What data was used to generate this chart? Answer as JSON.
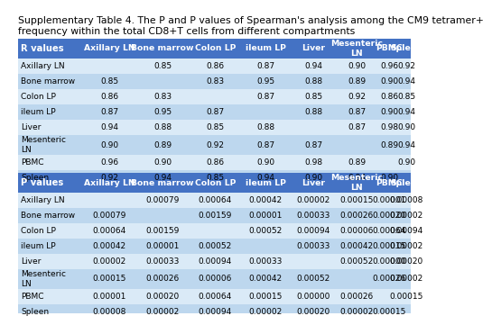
{
  "title_line1": "Supplementary Table 4. The P and P values of Spearman's analysis among the CM9 tetramer+",
  "title_line2": "frequency within the total CD8+T cells from different compartments",
  "r_header": "R values",
  "p_header": "P values",
  "columns": [
    "Axillary LN",
    "Bone marrow",
    "Colon LP",
    "ileum LP",
    "Liver",
    "Mesenteric\nLN",
    "PBMC",
    "Spleen"
  ],
  "rows": [
    "Axillary LN",
    "Bone marrow",
    "Colon LP",
    "ileum LP",
    "Liver",
    "Mesenteric\nLN",
    "PBMC",
    "Spleen"
  ],
  "r_data": [
    [
      "",
      "0.85",
      "0.86",
      "0.87",
      "0.94",
      "0.90",
      "0.96",
      "0.92"
    ],
    [
      "0.85",
      "",
      "0.83",
      "0.95",
      "0.88",
      "0.89",
      "0.90",
      "0.94"
    ],
    [
      "0.86",
      "0.83",
      "",
      "0.87",
      "0.85",
      "0.92",
      "0.86",
      "0.85"
    ],
    [
      "0.87",
      "0.95",
      "0.87",
      "",
      "0.88",
      "0.87",
      "0.90",
      "0.94"
    ],
    [
      "0.94",
      "0.88",
      "0.85",
      "0.88",
      "",
      "0.87",
      "0.98",
      "0.90"
    ],
    [
      "0.90",
      "0.89",
      "0.92",
      "0.87",
      "0.87",
      "",
      "0.89",
      "0.94"
    ],
    [
      "0.96",
      "0.90",
      "0.86",
      "0.90",
      "0.98",
      "0.89",
      "",
      "0.90"
    ],
    [
      "0.92",
      "0.94",
      "0.85",
      "0.94",
      "0.90",
      "0.94",
      "0.90",
      ""
    ]
  ],
  "p_data": [
    [
      "",
      "0.00079",
      "0.00064",
      "0.00042",
      "0.00002",
      "0.00015",
      "0.00001",
      "0.00008"
    ],
    [
      "0.00079",
      "",
      "0.00159",
      "0.00001",
      "0.00033",
      "0.00026",
      "0.00020",
      "0.00002"
    ],
    [
      "0.00064",
      "0.00159",
      "",
      "0.00052",
      "0.00094",
      "0.00006",
      "0.00064",
      "0.00094"
    ],
    [
      "0.00042",
      "0.00001",
      "0.00052",
      "",
      "0.00033",
      "0.00042",
      "0.00015",
      "0.00002"
    ],
    [
      "0.00002",
      "0.00033",
      "0.00094",
      "0.00033",
      "",
      "0.00052",
      "0.00000",
      "0.00020"
    ],
    [
      "0.00015",
      "0.00026",
      "0.00006",
      "0.00042",
      "0.00052",
      "",
      "0.00026",
      "0.00002"
    ],
    [
      "0.00001",
      "0.00020",
      "0.00064",
      "0.00015",
      "0.00000",
      "0.00026",
      "",
      "0.00015"
    ],
    [
      "0.00008",
      "0.00002",
      "0.00094",
      "0.00002",
      "0.00020",
      "0.00002",
      "0.00015",
      ""
    ]
  ],
  "header_bg": "#4472C4",
  "header_text": "#FFFFFF",
  "row_bg_light": "#DAEAF7",
  "row_bg_dark": "#BDD7EE",
  "title_fontsize": 7.8,
  "cell_fontsize": 6.5,
  "header_fontsize": 7.2,
  "row_label_fontsize": 6.5
}
